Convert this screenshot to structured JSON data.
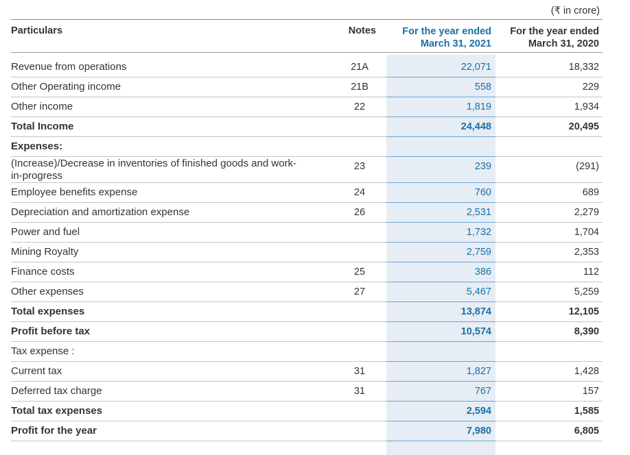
{
  "unit_note": "(₹ in crore)",
  "table": {
    "header": {
      "particulars": "Particulars",
      "notes": "Notes",
      "current": [
        "For the year ended",
        "March 31, 2021"
      ],
      "previous": [
        "For the year ended",
        "March 31, 2020"
      ]
    },
    "rows": [
      {
        "label": "Revenue from operations",
        "notes": "21A",
        "current": "22,071",
        "previous": "18,332"
      },
      {
        "label": "Other Operating income",
        "notes": "21B",
        "current": "558",
        "previous": "229"
      },
      {
        "label": "Other income",
        "notes": "22",
        "current": "1,819",
        "previous": "1,934"
      },
      {
        "label": "Total Income",
        "current": "24,448",
        "previous": "20,495",
        "bold": true
      },
      {
        "label": "Expenses:",
        "bold": true
      },
      {
        "label": "(Increase)/Decrease in inventories of finished goods and work-in-progress",
        "notes": "23",
        "current": "239",
        "previous": "(291)"
      },
      {
        "label": "Employee benefits expense",
        "notes": "24",
        "current": "760",
        "previous": "689"
      },
      {
        "label": "Depreciation and amortization expense",
        "notes": "26",
        "current": "2,531",
        "previous": "2,279"
      },
      {
        "label": "Power and fuel",
        "current": "1,732",
        "previous": "1,704"
      },
      {
        "label": "Mining Royalty",
        "current": "2,759",
        "previous": "2,353"
      },
      {
        "label": "Finance costs",
        "notes": "25",
        "current": "386",
        "previous": "112"
      },
      {
        "label": "Other expenses",
        "notes": "27",
        "current": "5,467",
        "previous": "5,259"
      },
      {
        "label": "Total expenses",
        "current": "13,874",
        "previous": "12,105",
        "bold": true
      },
      {
        "label": "Profit before tax",
        "current": "10,574",
        "previous": "8,390",
        "bold": true
      },
      {
        "label": "Tax expense :"
      },
      {
        "label": "Current tax",
        "notes": "31",
        "current": "1,827",
        "previous": "1,428"
      },
      {
        "label": "Deferred tax charge",
        "notes": "31",
        "current": "767",
        "previous": "157"
      },
      {
        "label": "Total tax expenses",
        "current": "2,594",
        "previous": "1,585",
        "bold": true
      },
      {
        "label": "Profit for the year",
        "current": "7,980",
        "previous": "6,805",
        "bold": true
      }
    ]
  }
}
